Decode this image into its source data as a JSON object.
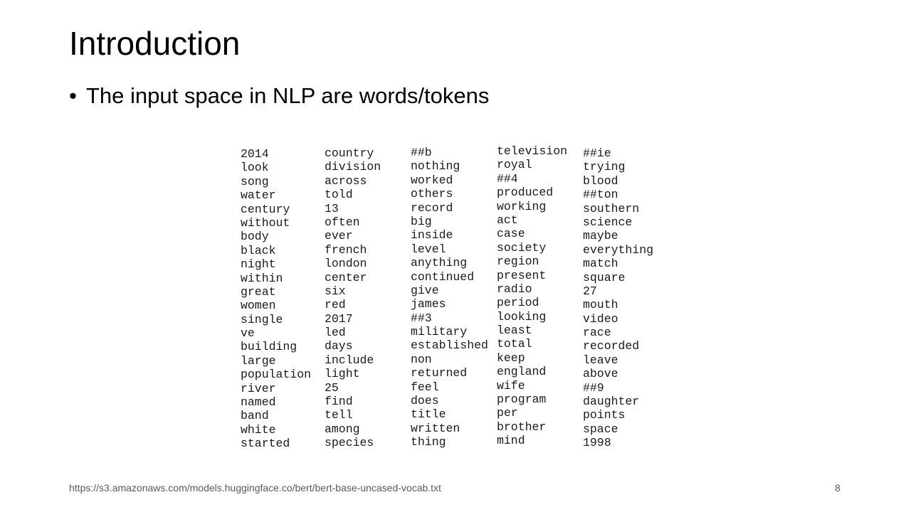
{
  "slide": {
    "title": "Introduction",
    "bullet": "The input space in NLP are words/tokens",
    "bullet_symbol": "•",
    "footer_url": "https://s3.amazonaws.com/models.huggingface.co/bert/bert-base-uncased-vocab.txt",
    "page_number": "8"
  },
  "vocab_columns": [
    [
      "2014",
      "look",
      "song",
      "water",
      "century",
      "without",
      "body",
      "black",
      "night",
      "within",
      "great",
      "women",
      "single",
      "ve",
      "building",
      "large",
      "population",
      "river",
      "named",
      "band",
      "white",
      "started"
    ],
    [
      "country",
      "division",
      "across",
      "told",
      "13",
      "often",
      "ever",
      "french",
      "london",
      "center",
      "six",
      "red",
      "2017",
      "led",
      "days",
      "include",
      "light",
      "25",
      "find",
      "tell",
      "among",
      "species"
    ],
    [
      "##b",
      "nothing",
      "worked",
      "others",
      "record",
      "big",
      "inside",
      "level",
      "anything",
      "continued",
      "give",
      "james",
      "##3",
      "military",
      "established",
      "non",
      "returned",
      "feel",
      "does",
      "title",
      "written",
      "thing"
    ],
    [
      "television",
      "royal",
      "##4",
      "produced",
      "working",
      "act",
      "case",
      "society",
      "region",
      "present",
      "radio",
      "period",
      "looking",
      "least",
      "total",
      "keep",
      "england",
      "wife",
      "program",
      "per",
      "brother",
      "mind"
    ],
    [
      "##ie",
      "trying",
      "blood",
      "##ton",
      "southern",
      "science",
      "maybe",
      "everything",
      "match",
      "square",
      "27",
      "mouth",
      "video",
      "race",
      "recorded",
      "leave",
      "above",
      "##9",
      "daughter",
      "points",
      "space",
      "1998"
    ]
  ]
}
